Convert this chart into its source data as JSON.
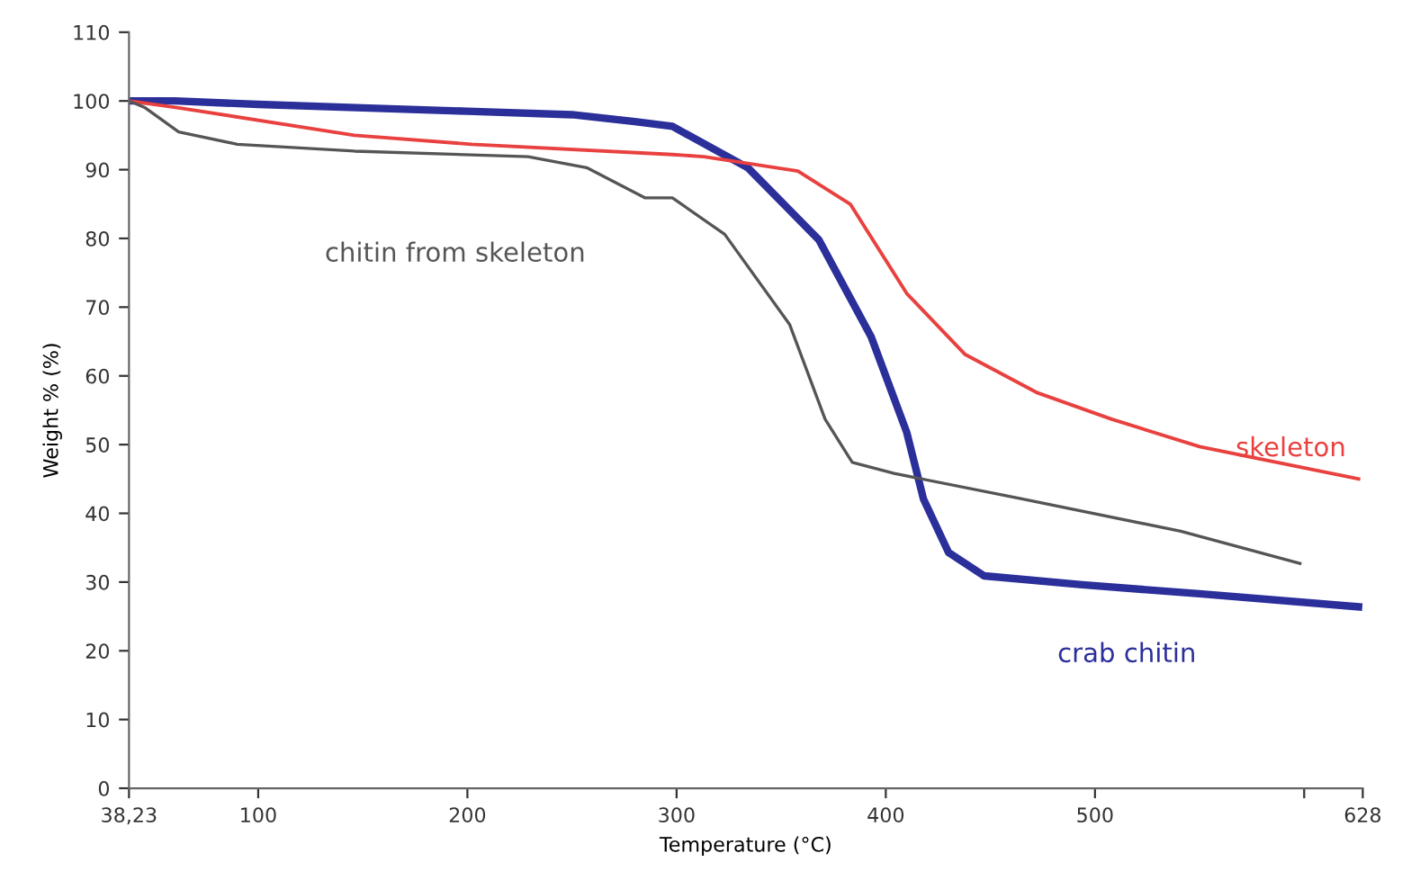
{
  "chart_data": {
    "type": "line",
    "xlabel": "Temperature (°C)",
    "ylabel": "Weight % (%)",
    "xlim": [
      38.23,
      628
    ],
    "ylim": [
      0,
      110
    ],
    "xticks": [
      {
        "value": 38.23,
        "label": "38,23"
      },
      100,
      200,
      300,
      400,
      500,
      {
        "value": 600,
        "label": null
      },
      628
    ],
    "yticks": [
      0,
      10,
      20,
      30,
      40,
      50,
      60,
      70,
      80,
      90,
      100,
      110
    ],
    "grid": false,
    "legend": false,
    "marker": "none",
    "line_style": "solid",
    "series": [
      {
        "name": "crab chitin",
        "color": "#2b2f9a",
        "x": [
          38.23,
          60,
          100,
          150,
          200,
          250,
          280,
          298,
          334,
          368,
          393,
          410,
          418,
          430,
          447,
          494,
          550,
          626
        ],
        "values": [
          100,
          100,
          99.5,
          99,
          98.5,
          98,
          97,
          96.3,
          90.3,
          79.8,
          65.7,
          51.8,
          42.1,
          34.3,
          30.9,
          29.6,
          28.3,
          26.4
        ]
      },
      {
        "name": "skeleton",
        "color": "#e8413f",
        "x": [
          38.23,
          62,
          146,
          202,
          298,
          313,
          358,
          383,
          410,
          438,
          472,
          508,
          550,
          626
        ],
        "values": [
          100,
          99,
          95,
          93.7,
          92.2,
          91.9,
          89.8,
          85,
          72,
          63.1,
          57.6,
          53.7,
          49.7,
          45
        ]
      },
      {
        "name": "chitin from skeleton",
        "color": "#555555",
        "x": [
          38.23,
          46,
          62,
          90,
          146,
          229,
          257,
          285,
          298,
          323,
          354,
          371,
          384,
          404,
          465,
          541,
          598
        ],
        "values": [
          100,
          99,
          95.5,
          93.7,
          92.7,
          91.9,
          90.3,
          85.9,
          85.9,
          80.6,
          67.5,
          53.7,
          47.4,
          45.8,
          42.1,
          37.4,
          32.7
        ]
      }
    ]
  }
}
